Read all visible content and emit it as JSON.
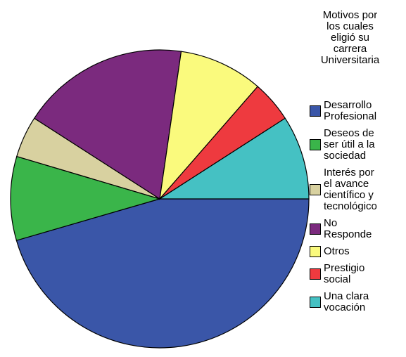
{
  "chart_data": {
    "type": "pie",
    "title": "Motivos por los cuales eligió su carrera Universitaria",
    "categories": [
      "Desarrollo Profesional",
      "Deseos de ser útil a la sociedad",
      "Interés por el avance científico y tecnológico",
      "No Responde",
      "Otros",
      "Prestigio social",
      "Una clara vocación"
    ],
    "values": [
      45.5,
      9.1,
      4.5,
      18.2,
      9.1,
      4.5,
      9.1
    ],
    "colors": [
      "#3a56a8",
      "#3ab54a",
      "#d8d1a0",
      "#7b2a7e",
      "#fafa7d",
      "#ee3a3f",
      "#45c1c3"
    ],
    "legend": "right"
  }
}
